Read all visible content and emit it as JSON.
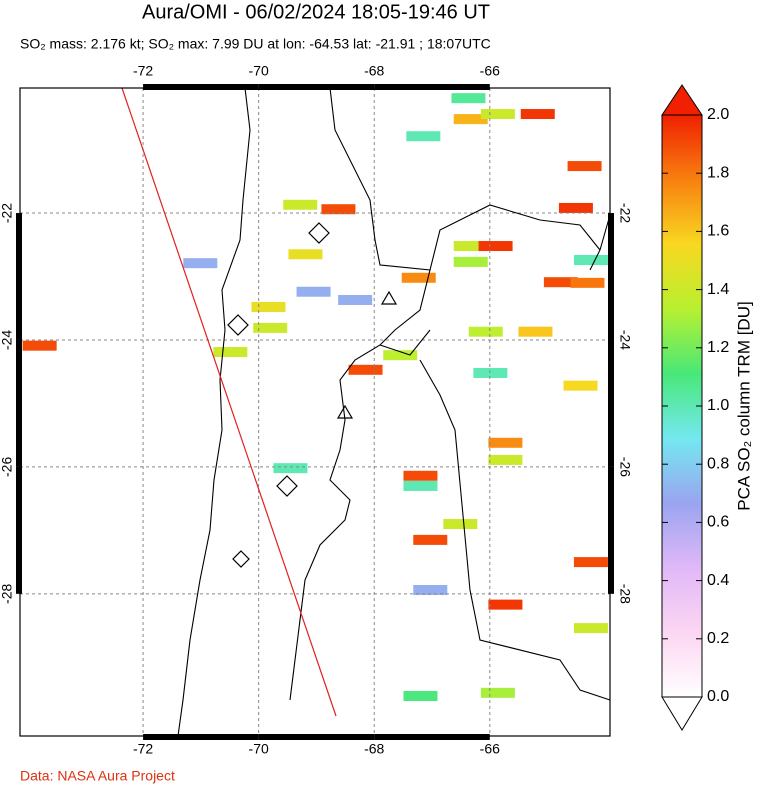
{
  "chart_data": {
    "type": "map",
    "title": "Aura/OMI - 06/02/2024 18:05-19:46 UT",
    "subtitle": "SO₂ mass: 2.176 kt; SO₂ max: 7.99 DU at lon: -64.53 lat: -21.91 ; 18:07UTC",
    "xlim": [
      -74.13,
      -63.92
    ],
    "ylim": [
      -30.24,
      -20.03
    ],
    "xticks": [
      -72,
      -70,
      -68,
      -66
    ],
    "yticks": [
      -22,
      -24,
      -26,
      -28
    ],
    "grid": true,
    "colorbar": {
      "label": "PCA SO₂ column TRM [DU]",
      "lim": [
        0,
        2
      ],
      "ticks": [
        {
          "value": 0,
          "label": "0.0"
        },
        0.2,
        0.4,
        0.6,
        0.8,
        {
          "value": 1,
          "label": "1.0"
        },
        1.2,
        1.4,
        1.6,
        1.8,
        {
          "value": 2,
          "label": "2.0"
        }
      ],
      "colormap": [
        "#ffffff",
        "#fcd6f2",
        "#e0b8f8",
        "#9aa4f0",
        "#74e8f0",
        "#48e878",
        "#b8f030",
        "#f8d820",
        "#f88010",
        "#f02000"
      ]
    },
    "pixels": {
      "lon": [
        -68.62,
        -69.28,
        -69.19,
        -69.83,
        -69.8,
        -69.05,
        -70.49,
        -68.15,
        -67.55,
        -67.23,
        -66.33,
        -65.9,
        -66.33,
        -66.07,
        -65.21,
        -64.77,
        -64.31,
        -64.51,
        -64.36,
        -65.17,
        -66.33,
        -65.86,
        -67.15,
        -66.37,
        -64.25,
        -65.73,
        -65.73,
        -67.2,
        -67.2,
        -69.45,
        -67.03,
        -66.51,
        -65.73,
        -64.25,
        -64.25,
        -67.2,
        -65.86,
        -65.99,
        -64.43,
        -73.79,
        -71.01,
        -67.03,
        -68.33
      ],
      "lat": [
        -21.94,
        -21.87,
        -22.65,
        -23.48,
        -23.81,
        -23.24,
        -24.19,
        -24.47,
        -24.24,
        -23.02,
        -22.52,
        -22.52,
        -22.77,
        -23.87,
        -23.87,
        -23.09,
        -23.1,
        -21.92,
        -21.26,
        -20.44,
        -20.52,
        -20.44,
        -20.79,
        -20.19,
        -22.74,
        -25.62,
        -25.89,
        -26.14,
        -26.3,
        -26.02,
        -27.15,
        -26.9,
        -28.17,
        -27.5,
        -28.54,
        -29.61,
        -29.56,
        -24.52,
        -24.72,
        -24.09,
        -22.79,
        -27.94,
        -23.37
      ],
      "values": [
        1.9,
        1.4,
        1.5,
        1.5,
        1.4,
        0.7,
        1.4,
        1.9,
        1.35,
        1.75,
        1.4,
        1.95,
        1.3,
        1.35,
        1.6,
        1.9,
        1.8,
        1.95,
        1.9,
        1.95,
        1.65,
        1.4,
        1.0,
        1.05,
        1.0,
        1.75,
        1.4,
        1.9,
        1.0,
        1.0,
        1.9,
        1.4,
        1.95,
        1.9,
        1.4,
        1.1,
        1.3,
        1.0,
        1.55,
        1.9,
        0.7,
        0.7,
        0.7
      ]
    },
    "footer": "Data: NASA Aura Project"
  }
}
